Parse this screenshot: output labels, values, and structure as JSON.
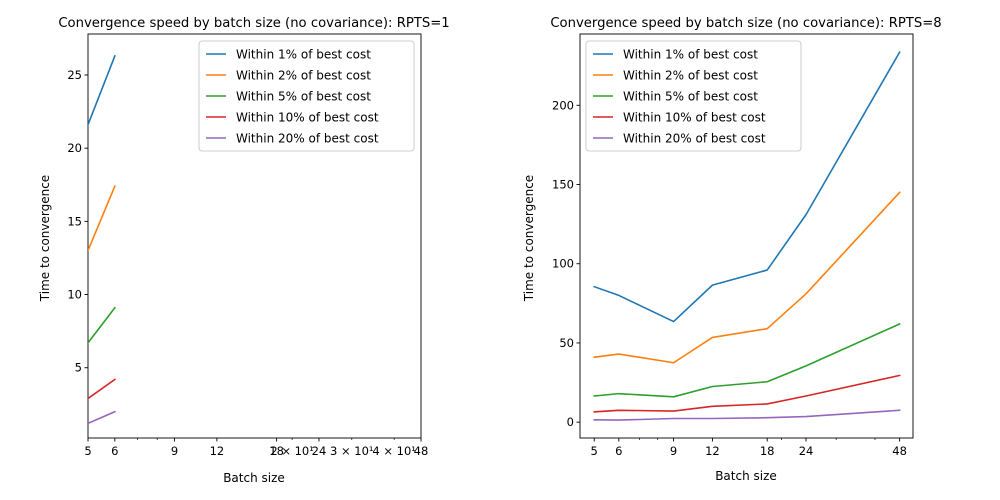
{
  "chart_data": [
    {
      "type": "line",
      "title": "Convergence speed by batch size (no covariance): RPTS=1",
      "xlabel": "Batch size",
      "ylabel": "Time to convergence",
      "x_scale": "log",
      "xlim": [
        5,
        48
      ],
      "ylim": [
        0.2,
        27.8
      ],
      "x_ticks": [
        "5",
        "6",
        "9",
        "12",
        "18",
        "24",
        "48"
      ],
      "x_minor_tick_labels": [
        {
          "x": 20,
          "label": "2 × 10¹"
        },
        {
          "x": 30,
          "label": "3 × 10¹"
        },
        {
          "x": 40,
          "label": "4 × 10¹"
        }
      ],
      "y_ticks": [
        5,
        10,
        15,
        20,
        25
      ],
      "grid": false,
      "legend_position": "top-right",
      "x": [
        5,
        6
      ],
      "series": [
        {
          "name": "Within 1% of best cost",
          "color": "#1f77b4",
          "values": [
            21.6,
            26.3
          ]
        },
        {
          "name": "Within 2% of best cost",
          "color": "#ff7f0e",
          "values": [
            13.0,
            17.4
          ]
        },
        {
          "name": "Within 5% of best cost",
          "color": "#2ca02c",
          "values": [
            6.7,
            9.1
          ]
        },
        {
          "name": "Within 10% of best cost",
          "color": "#d62728",
          "values": [
            2.9,
            4.2
          ]
        },
        {
          "name": "Within 20% of best cost",
          "color": "#9467bd",
          "values": [
            1.2,
            2.0
          ]
        }
      ]
    },
    {
      "type": "line",
      "title": "Convergence speed by batch size (no covariance): RPTS=8",
      "xlabel": "Batch size",
      "ylabel": "Time to convergence",
      "x_scale": "log",
      "xlim": [
        4.5,
        53
      ],
      "ylim": [
        -10,
        245
      ],
      "x_ticks": [
        "5",
        "6",
        "9",
        "12",
        "18",
        "24",
        "48"
      ],
      "y_ticks": [
        0,
        50,
        100,
        150,
        200
      ],
      "grid": false,
      "legend_position": "top-left",
      "x": [
        5,
        6,
        9,
        12,
        18,
        24,
        48
      ],
      "series": [
        {
          "name": "Within 1% of best cost",
          "color": "#1f77b4",
          "values": [
            85.5,
            80,
            63.5,
            86.5,
            96,
            131,
            233.5
          ]
        },
        {
          "name": "Within 2% of best cost",
          "color": "#ff7f0e",
          "values": [
            41,
            43,
            37.5,
            53.5,
            59,
            81,
            145
          ]
        },
        {
          "name": "Within 5% of best cost",
          "color": "#2ca02c",
          "values": [
            16.5,
            18,
            16,
            22.5,
            25.5,
            35.5,
            62
          ]
        },
        {
          "name": "Within 10% of best cost",
          "color": "#d62728",
          "values": [
            6.5,
            7.5,
            7,
            10,
            11.5,
            16.5,
            29.5
          ]
        },
        {
          "name": "Within 20% of best cost",
          "color": "#9467bd",
          "values": [
            1.5,
            1.3,
            2.3,
            2.3,
            2.8,
            3.5,
            7.5
          ]
        }
      ]
    }
  ]
}
